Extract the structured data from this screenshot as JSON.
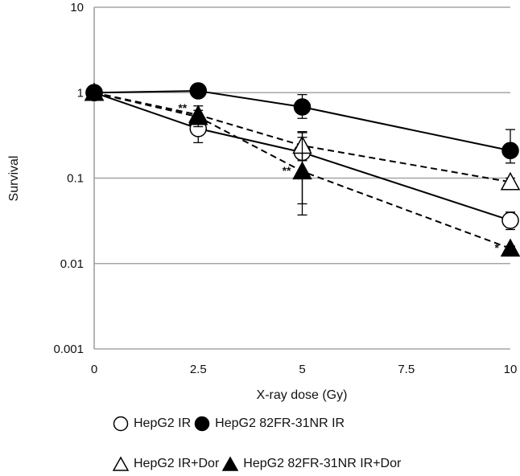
{
  "chart_data": {
    "type": "line",
    "xlabel": "X-ray dose (Gy)",
    "ylabel": "Survival",
    "x_ticks": [
      "0",
      "2.5",
      "5",
      "7.5",
      "10"
    ],
    "y_ticks": [
      "10",
      "1",
      "0.1",
      "0.01",
      "0.001"
    ],
    "y_scale": "log",
    "ylim": [
      0.001,
      10
    ],
    "xlim": [
      0,
      10
    ],
    "grid": "horizontal",
    "legend_position": "bottom",
    "series": [
      {
        "name": "HepG2 IR",
        "marker": "circle-open",
        "line": "solid",
        "x": [
          0,
          2.5,
          5,
          10
        ],
        "y": [
          1,
          0.38,
          0.2,
          0.032
        ],
        "err_hi": [
          1,
          0.55,
          0.35,
          0.04
        ],
        "err_lo": [
          1,
          0.26,
          0.05,
          0.025
        ]
      },
      {
        "name": "HepG2 82FR-31NR IR",
        "marker": "circle-filled",
        "line": "solid",
        "x": [
          0,
          2.5,
          5,
          10
        ],
        "y": [
          1,
          1.05,
          0.68,
          0.21
        ],
        "err_hi": [
          1,
          1.1,
          0.95,
          0.37
        ],
        "err_lo": [
          1,
          1.0,
          0.5,
          0.15
        ]
      },
      {
        "name": "HepG2 IR+Dor",
        "marker": "triangle-open",
        "line": "dashed",
        "x": [
          0,
          2.5,
          5,
          10
        ],
        "y": [
          1,
          0.55,
          0.24,
          0.09
        ],
        "err_hi": [
          1,
          0.62,
          0.34,
          0.1
        ],
        "err_lo": [
          1,
          0.5,
          0.16,
          0.08
        ]
      },
      {
        "name": "HepG2 82FR-31NR IR+Dor",
        "marker": "triangle-filled",
        "line": "dashed",
        "x": [
          0,
          2.5,
          5,
          10
        ],
        "y": [
          1,
          0.52,
          0.12,
          0.015
        ],
        "err_hi": [
          1,
          0.7,
          0.3,
          0.016
        ],
        "err_lo": [
          1,
          0.4,
          0.037,
          0.014
        ]
      }
    ],
    "annotations": [
      {
        "text": "**",
        "x": 2.5,
        "y": 0.65
      },
      {
        "text": "**",
        "x": 5,
        "y": 0.12
      },
      {
        "text": "*",
        "x": 10,
        "y": 0.015
      }
    ]
  },
  "legend": {
    "row1": [
      {
        "marker": "circle-open",
        "label": "HepG2 IR"
      },
      {
        "marker": "circle-filled",
        "label": "HepG2 82FR-31NR IR"
      }
    ],
    "row2": [
      {
        "marker": "triangle-open",
        "label": "HepG2 IR+Dor"
      },
      {
        "marker": "triangle-filled",
        "label": "HepG2 82FR-31NR IR+Dor"
      }
    ]
  }
}
